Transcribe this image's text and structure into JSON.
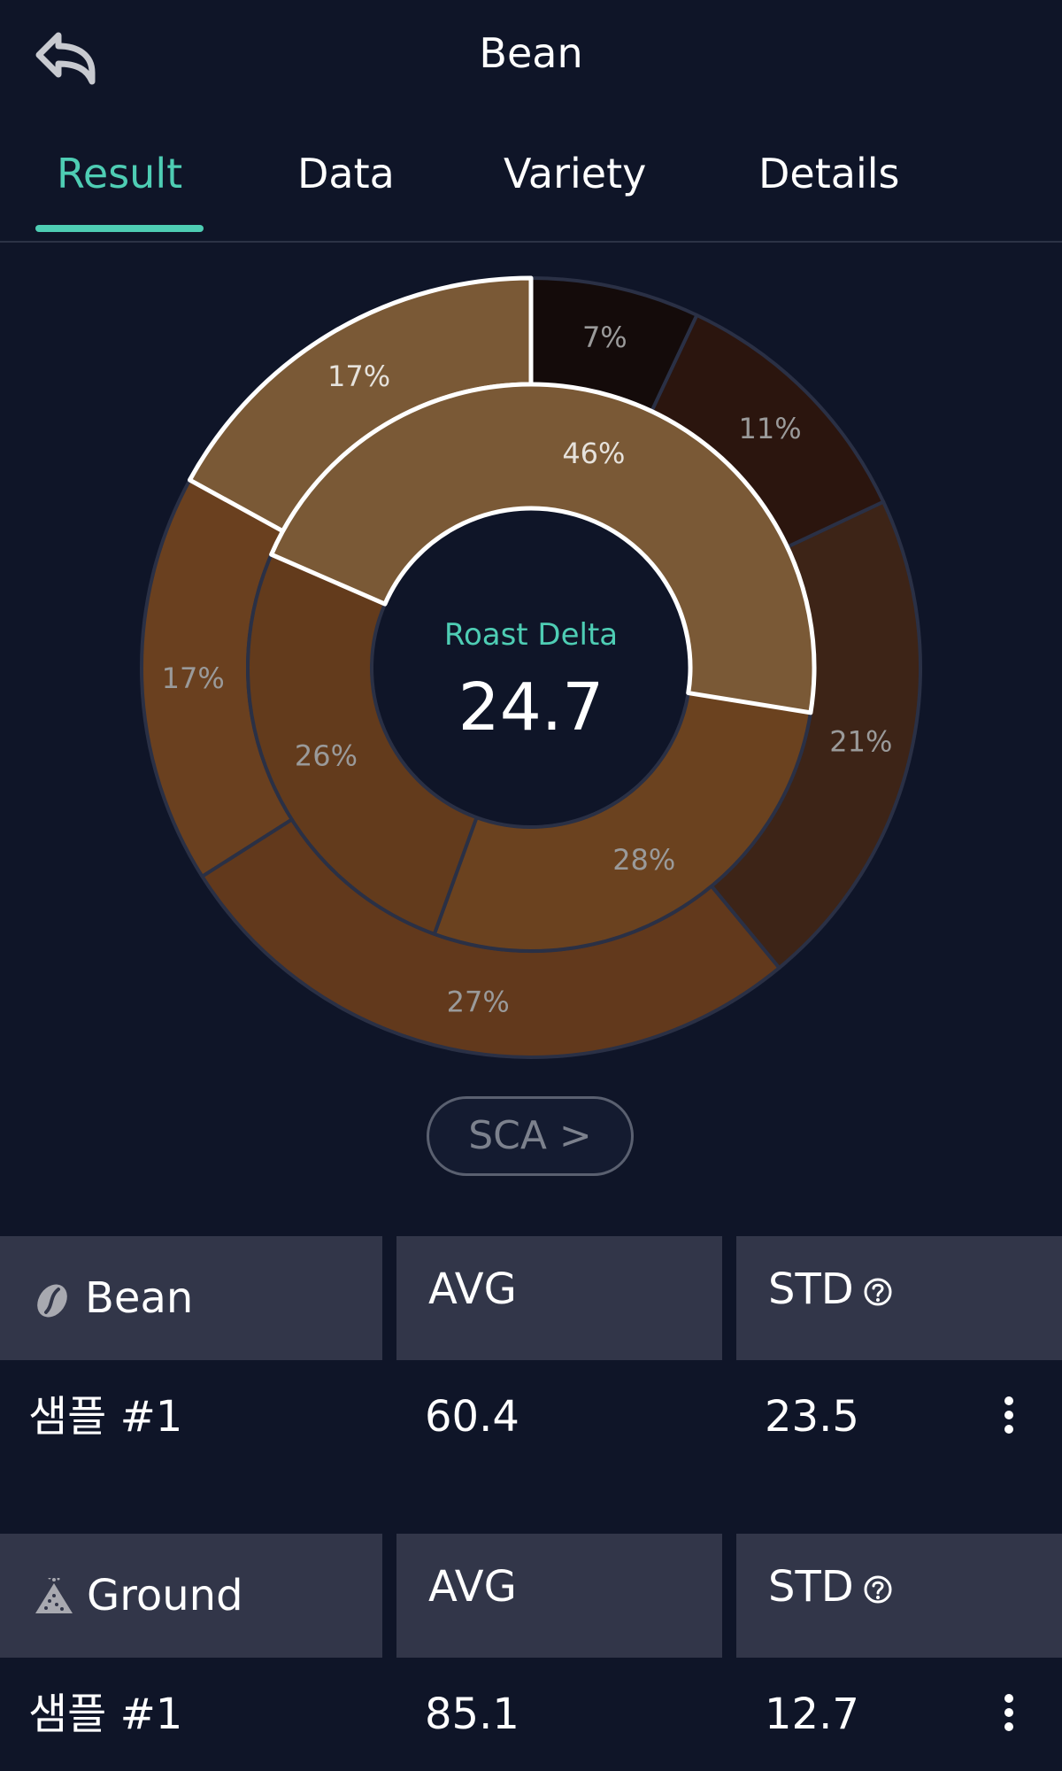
{
  "header": {
    "title": "Bean",
    "back_icon": "back-arrow-icon"
  },
  "tabs": [
    {
      "label": "Result",
      "active": true
    },
    {
      "label": "Data",
      "active": false
    },
    {
      "label": "Variety",
      "active": false
    },
    {
      "label": "Details",
      "active": false
    }
  ],
  "chart_data": {
    "type": "pie",
    "center_label": "Roast Delta",
    "center_value": "24.7",
    "inner_ring": [
      {
        "label": "46%",
        "value": 46,
        "color": "#7a5936"
      },
      {
        "label": "28%",
        "value": 28,
        "color": "#6b421f"
      },
      {
        "label": "26%",
        "value": 26,
        "color": "#633b1c"
      }
    ],
    "outer_ring": [
      {
        "label": "7%",
        "value": 7,
        "color": "#140b0a"
      },
      {
        "label": "11%",
        "value": 11,
        "color": "#2b150e"
      },
      {
        "label": "21%",
        "value": 21,
        "color": "#3d2417"
      },
      {
        "label": "27%",
        "value": 27,
        "color": "#62391c"
      },
      {
        "label": "17%",
        "value": 17,
        "color": "#6a401f"
      },
      {
        "label": "17%",
        "value": 17,
        "color": "#7a5936"
      }
    ],
    "highlight_color": "#ffffff",
    "separator_color": "#2a3045",
    "label_color": "#9a9a9a",
    "accent_color": "#4ecdb4"
  },
  "sca_button": {
    "label": "SCA >"
  },
  "sections": [
    {
      "icon": "coffee-bean-icon",
      "label": "Bean",
      "avg_header": "AVG",
      "std_header": "STD",
      "row": {
        "name": "샘플 #1",
        "avg": "60.4",
        "std": "23.5"
      }
    },
    {
      "icon": "ground-coffee-icon",
      "label": "Ground",
      "avg_header": "AVG",
      "std_header": "STD",
      "row": {
        "name": "샘플 #1",
        "avg": "85.1",
        "std": "12.7"
      }
    }
  ]
}
